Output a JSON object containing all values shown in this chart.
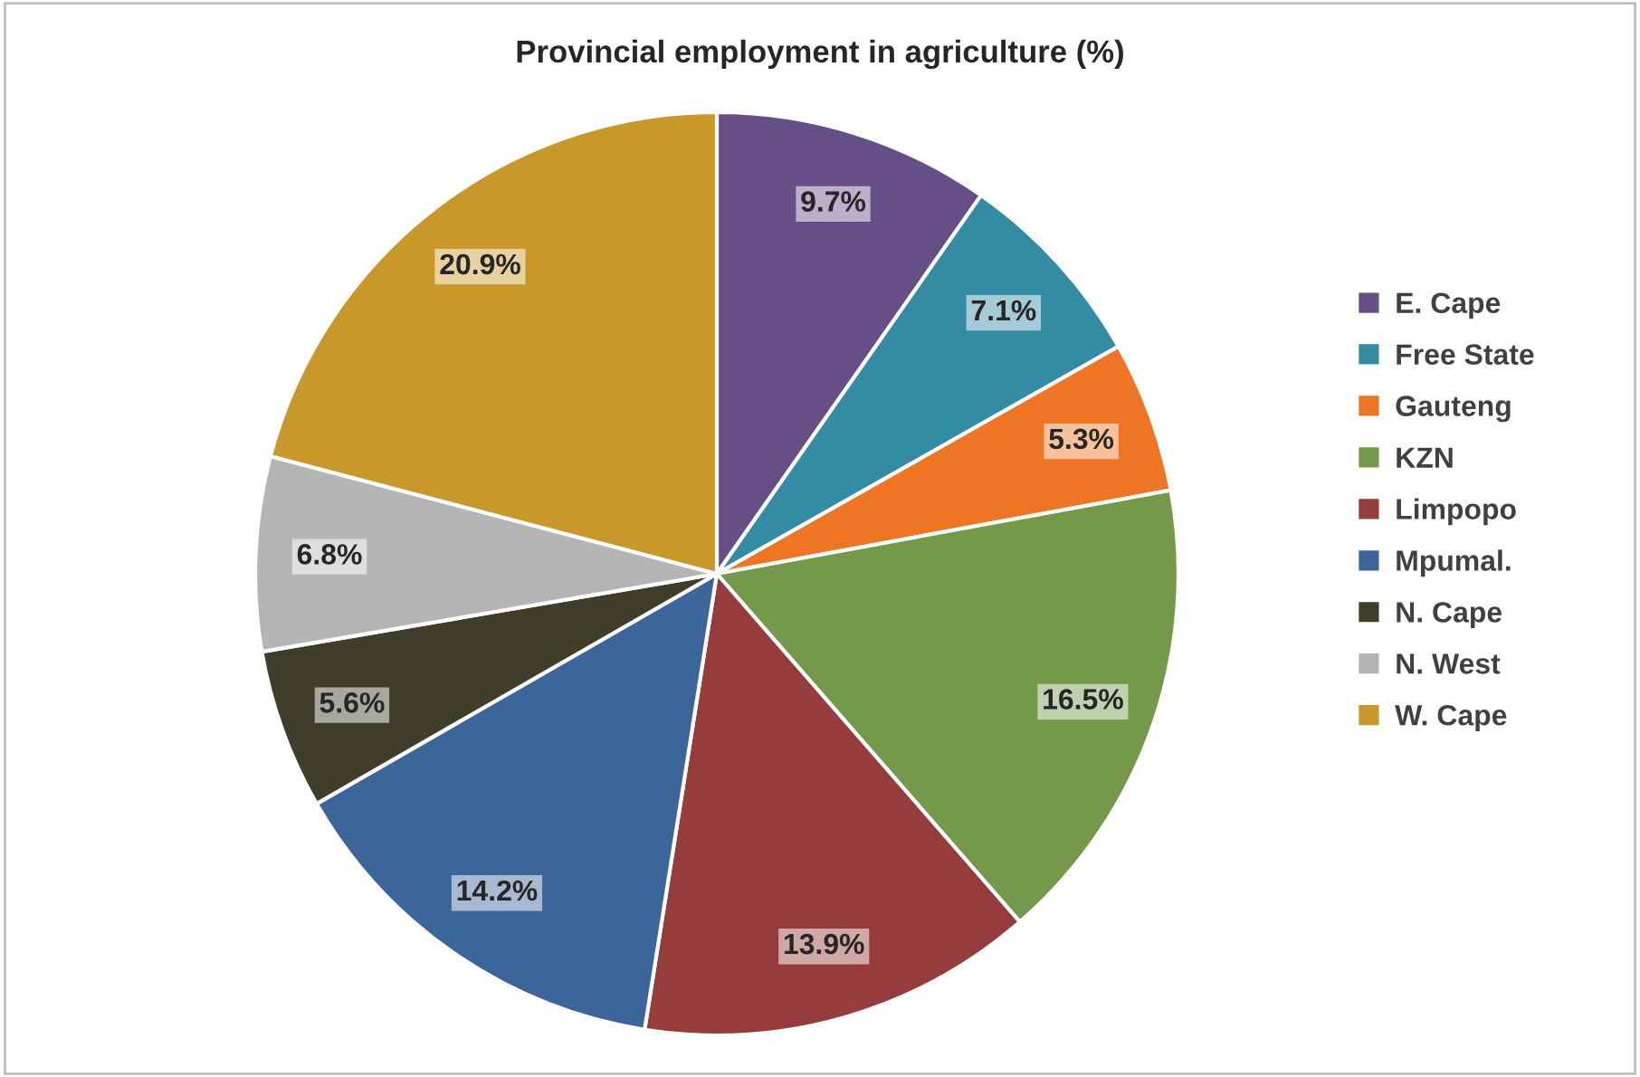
{
  "chart_data": {
    "type": "pie",
    "title": "Provincial employment in agriculture (%)",
    "categories": [
      "E. Cape",
      "Free State",
      "Gauteng",
      "KZN",
      "Limpopo",
      "Mpumal.",
      "N. Cape",
      "N. West",
      "W. Cape"
    ],
    "values": [
      9.7,
      7.1,
      5.3,
      16.5,
      13.9,
      14.2,
      5.6,
      6.8,
      20.9
    ],
    "colors": [
      "#654f86",
      "#348ba4",
      "#ed7523",
      "#74994a",
      "#973c3c",
      "#3c6699",
      "#3f3e2a",
      "#b5b5b5",
      "#c9982a"
    ],
    "value_labels": [
      "9.7%",
      "7.1%",
      "5.3%",
      "16.5%",
      "13.9%",
      "14.2%",
      "5.6%",
      "6.8%",
      "20.9%"
    ],
    "legend": "right"
  }
}
